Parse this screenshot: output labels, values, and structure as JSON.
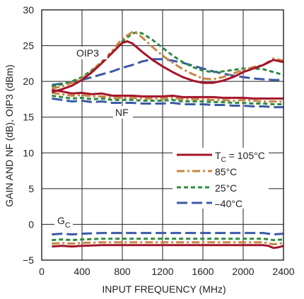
{
  "chart_data": {
    "type": "line",
    "xlabel": "INPUT FREQUENCY (MHz)",
    "ylabel": "GAIN AND NF (dB), OIP3 (dBm)",
    "xlim": [
      0,
      2400
    ],
    "ylim": [
      -5,
      30
    ],
    "xticks": [
      "0",
      "400",
      "800",
      "1200",
      "1600",
      "2000",
      "2400"
    ],
    "yticks": [
      "−5",
      "0",
      "5",
      "10",
      "15",
      "20",
      "25",
      "30"
    ],
    "grid": true,
    "legend_position": "right-middle",
    "annotations": {
      "oip3": "OIP3",
      "nf": "NF",
      "gc_main": "G",
      "gc_sub": "C"
    },
    "series": [
      {
        "name": "T",
        "name_sub": "C",
        "name_suffix": " = 105°C",
        "color": "#a3152b",
        "dash": "solid",
        "oip3": {
          "x": [
            100,
            200,
            300,
            400,
            500,
            600,
            700,
            800,
            850,
            900,
            1000,
            1100,
            1200,
            1300,
            1400,
            1500,
            1600,
            1700,
            1800,
            1900,
            2000,
            2100,
            2200,
            2300,
            2400
          ],
          "y": [
            18.5,
            18.9,
            19.4,
            20.2,
            21.3,
            22.6,
            24.0,
            25.4,
            25.6,
            25.3,
            24.1,
            23.0,
            22.1,
            21.3,
            20.6,
            20.1,
            19.8,
            19.8,
            20.1,
            20.6,
            21.3,
            21.8,
            22.3,
            23.0,
            22.7
          ]
        },
        "nf": {
          "x": [
            100,
            200,
            300,
            400,
            500,
            600,
            700,
            800,
            900,
            1000,
            1100,
            1200,
            1300,
            1400,
            1500,
            1600,
            1700,
            1800,
            1900,
            2000,
            2100,
            2200,
            2300,
            2400
          ],
          "y": [
            18.8,
            18.6,
            18.3,
            18.4,
            18.2,
            18.3,
            18.0,
            18.0,
            18.0,
            17.9,
            17.9,
            17.9,
            18.0,
            17.8,
            17.8,
            17.8,
            17.8,
            17.7,
            17.7,
            17.7,
            17.6,
            17.6,
            17.6,
            17.6
          ]
        },
        "gc": {
          "x": [
            100,
            200,
            300,
            400,
            600,
            800,
            1000,
            1200,
            1400,
            1600,
            1800,
            2000,
            2200,
            2250,
            2300,
            2350,
            2400
          ],
          "y": [
            -3.1,
            -3.0,
            -3.1,
            -3.0,
            -2.9,
            -2.9,
            -2.9,
            -2.9,
            -2.9,
            -2.9,
            -2.9,
            -2.9,
            -2.9,
            -3.0,
            -3.3,
            -3.2,
            -3.0
          ]
        }
      },
      {
        "name": "85°C",
        "color": "#c88643",
        "dash": "dashdot",
        "oip3": {
          "x": [
            100,
            200,
            300,
            400,
            500,
            600,
            700,
            800,
            900,
            950,
            1000,
            1100,
            1200,
            1300,
            1400,
            1500,
            1600,
            1700,
            1800,
            1900,
            2000,
            2100,
            2200,
            2300,
            2400
          ],
          "y": [
            19.0,
            19.3,
            19.8,
            20.4,
            21.5,
            22.8,
            24.3,
            26.0,
            26.9,
            26.7,
            26.1,
            24.8,
            23.6,
            22.6,
            21.7,
            21.0,
            20.4,
            20.3,
            20.6,
            21.1,
            21.6,
            22.0,
            22.3,
            23.2,
            22.9
          ]
        },
        "nf": {
          "x": [
            100,
            200,
            300,
            400,
            500,
            600,
            700,
            800,
            900,
            1000,
            1100,
            1200,
            1300,
            1400,
            1500,
            1600,
            1700,
            1800,
            1900,
            2000,
            2100,
            2200,
            2300,
            2400
          ],
          "y": [
            18.4,
            18.2,
            18.0,
            18.1,
            17.9,
            17.9,
            17.7,
            17.7,
            17.7,
            17.6,
            17.6,
            17.6,
            17.7,
            17.5,
            17.5,
            17.5,
            17.4,
            17.4,
            17.3,
            17.4,
            17.3,
            17.2,
            17.2,
            17.2
          ]
        },
        "gc": {
          "x": [
            100,
            200,
            300,
            400,
            600,
            800,
            1000,
            1200,
            1400,
            1600,
            1800,
            2000,
            2200,
            2300,
            2400
          ],
          "y": [
            -2.7,
            -2.6,
            -2.7,
            -2.6,
            -2.5,
            -2.5,
            -2.5,
            -2.5,
            -2.5,
            -2.5,
            -2.5,
            -2.5,
            -2.5,
            -2.8,
            -2.6
          ]
        }
      },
      {
        "name": "25°C",
        "color": "#2e8b3e",
        "dash": "dashed",
        "oip3": {
          "x": [
            100,
            200,
            300,
            400,
            500,
            600,
            700,
            800,
            900,
            950,
            1000,
            1100,
            1200,
            1300,
            1400,
            1500,
            1600,
            1700,
            1800,
            1900,
            2000,
            2100,
            2200,
            2300,
            2400
          ],
          "y": [
            19.3,
            19.6,
            20.0,
            20.6,
            21.6,
            22.8,
            24.1,
            25.6,
            26.7,
            26.9,
            26.7,
            25.8,
            24.7,
            23.6,
            22.7,
            22.0,
            21.5,
            21.3,
            21.4,
            21.6,
            21.8,
            21.8,
            21.7,
            21.3,
            20.9
          ]
        },
        "nf": {
          "x": [
            100,
            200,
            300,
            400,
            500,
            600,
            700,
            800,
            900,
            1000,
            1100,
            1200,
            1300,
            1400,
            1500,
            1600,
            1700,
            1800,
            1900,
            2000,
            2100,
            2200,
            2300,
            2400
          ],
          "y": [
            18.0,
            17.8,
            17.6,
            17.7,
            17.5,
            17.6,
            17.4,
            17.4,
            17.4,
            17.3,
            17.3,
            17.3,
            17.4,
            17.2,
            17.2,
            17.2,
            17.1,
            17.1,
            17.0,
            17.0,
            16.9,
            16.9,
            16.8,
            16.8
          ]
        },
        "gc": {
          "x": [
            100,
            200,
            300,
            400,
            600,
            800,
            1000,
            1200,
            1400,
            1600,
            1800,
            2000,
            2200,
            2300,
            2400
          ],
          "y": [
            -2.2,
            -2.1,
            -2.2,
            -2.1,
            -2.0,
            -2.0,
            -2.0,
            -2.0,
            -2.0,
            -2.0,
            -2.0,
            -2.0,
            -2.0,
            -2.2,
            -2.1
          ]
        }
      },
      {
        "name": "–40°C",
        "color": "#3a5aa6",
        "dash": "longdash",
        "oip3": {
          "x": [
            100,
            200,
            300,
            400,
            500,
            600,
            700,
            800,
            900,
            1000,
            1100,
            1200,
            1300,
            1400,
            1500,
            1600,
            1700,
            1800,
            1900,
            2000,
            2100,
            2200,
            2300,
            2400
          ],
          "y": [
            19.5,
            19.7,
            19.9,
            20.2,
            20.6,
            21.0,
            21.4,
            21.9,
            22.3,
            22.8,
            23.1,
            23.1,
            22.9,
            22.6,
            22.2,
            21.8,
            21.4,
            21.1,
            20.8,
            20.6,
            20.4,
            20.3,
            20.2,
            20.2
          ]
        },
        "nf": {
          "x": [
            100,
            200,
            300,
            400,
            500,
            600,
            700,
            800,
            900,
            1000,
            1100,
            1200,
            1300,
            1400,
            1500,
            1600,
            1700,
            1800,
            1900,
            2000,
            2100,
            2200,
            2300,
            2400
          ],
          "y": [
            17.6,
            17.4,
            17.2,
            17.3,
            17.1,
            17.2,
            17.0,
            17.0,
            17.0,
            16.9,
            16.9,
            16.9,
            17.0,
            16.8,
            16.8,
            16.8,
            16.7,
            16.7,
            16.6,
            16.6,
            16.5,
            16.5,
            16.4,
            16.4
          ]
        },
        "gc": {
          "x": [
            100,
            200,
            300,
            400,
            600,
            800,
            1000,
            1200,
            1400,
            1600,
            1800,
            2000,
            2200,
            2300,
            2400
          ],
          "y": [
            -1.4,
            -1.3,
            -1.4,
            -1.3,
            -1.2,
            -1.2,
            -1.2,
            -1.2,
            -1.2,
            -1.2,
            -1.2,
            -1.2,
            -1.2,
            -1.4,
            -1.3
          ]
        }
      }
    ]
  }
}
